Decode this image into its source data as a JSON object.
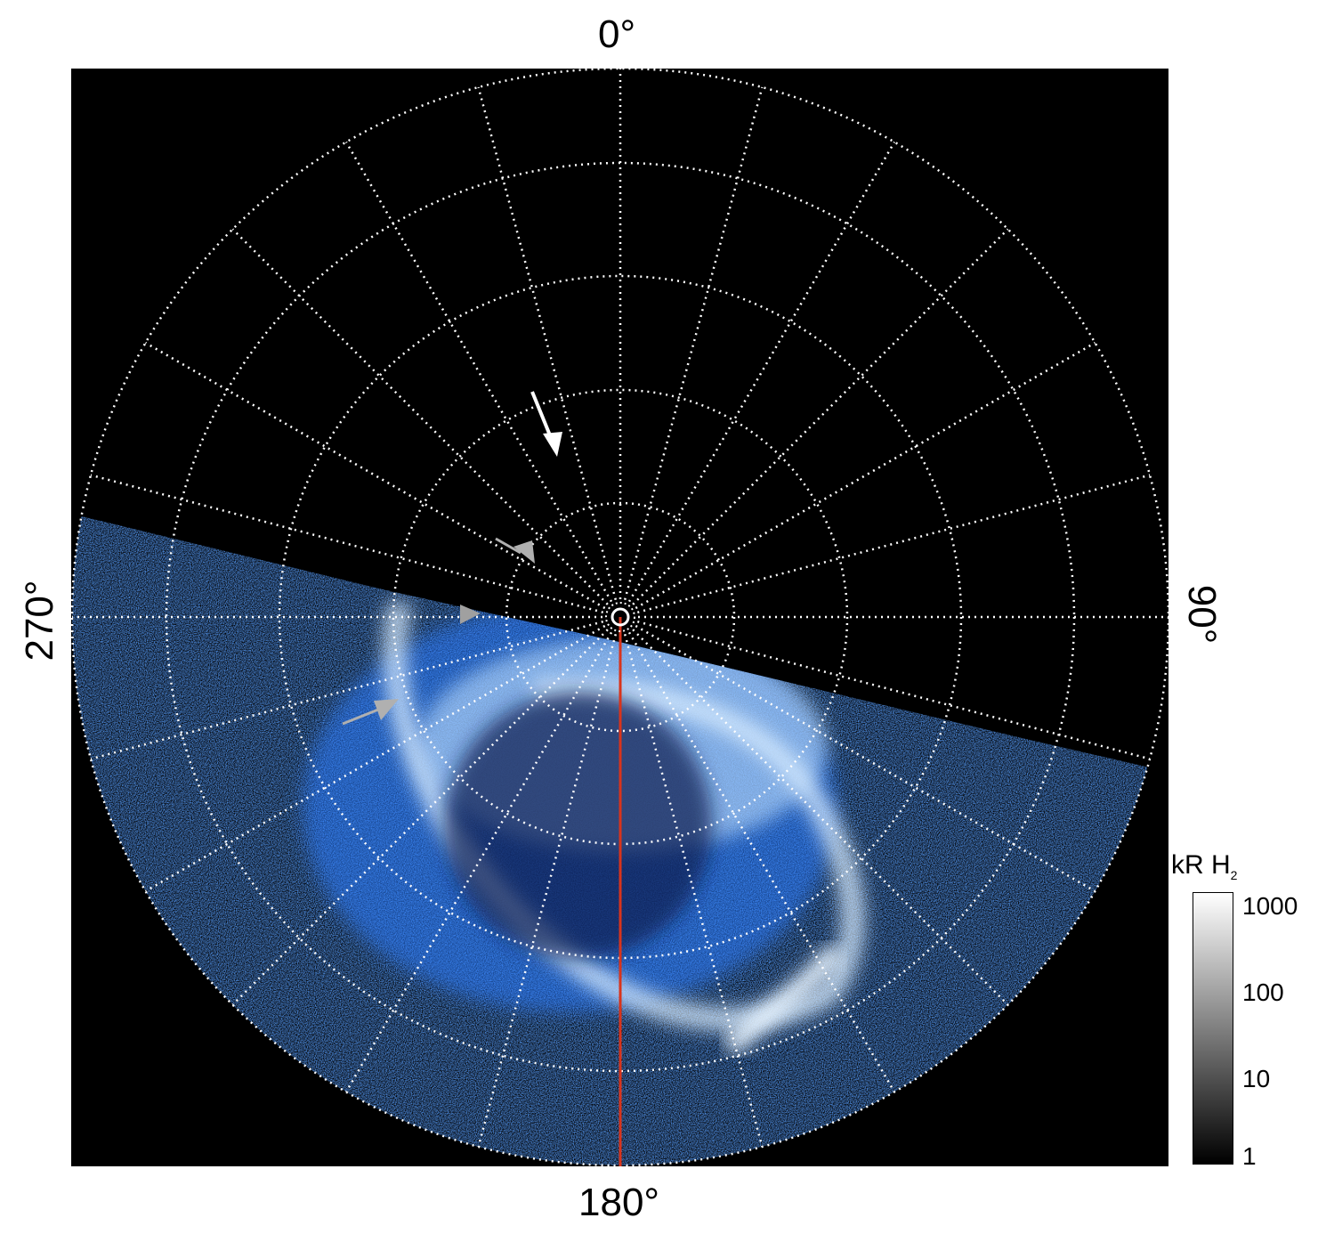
{
  "axis_labels": {
    "top": "0°",
    "right": "90°",
    "bottom": "180°",
    "left": "270°"
  },
  "colorbar": {
    "title": "kR H",
    "title_subscript": "2",
    "ticks": [
      "1000",
      "100",
      "10",
      "1"
    ],
    "scale": "log",
    "range": [
      1,
      1000
    ],
    "colormap": "black-to-white"
  },
  "colors": {
    "background": "#000000",
    "emission": "#1e6bff",
    "emission_bright": "#e8f4ff",
    "grid": "#ffffff",
    "reference_meridian": "#d8341c",
    "arrow_primary": "#ffffff",
    "arrow_secondary": "#b0b0b0"
  },
  "grid": {
    "longitude_step_deg": 15,
    "style": "dotted"
  }
}
